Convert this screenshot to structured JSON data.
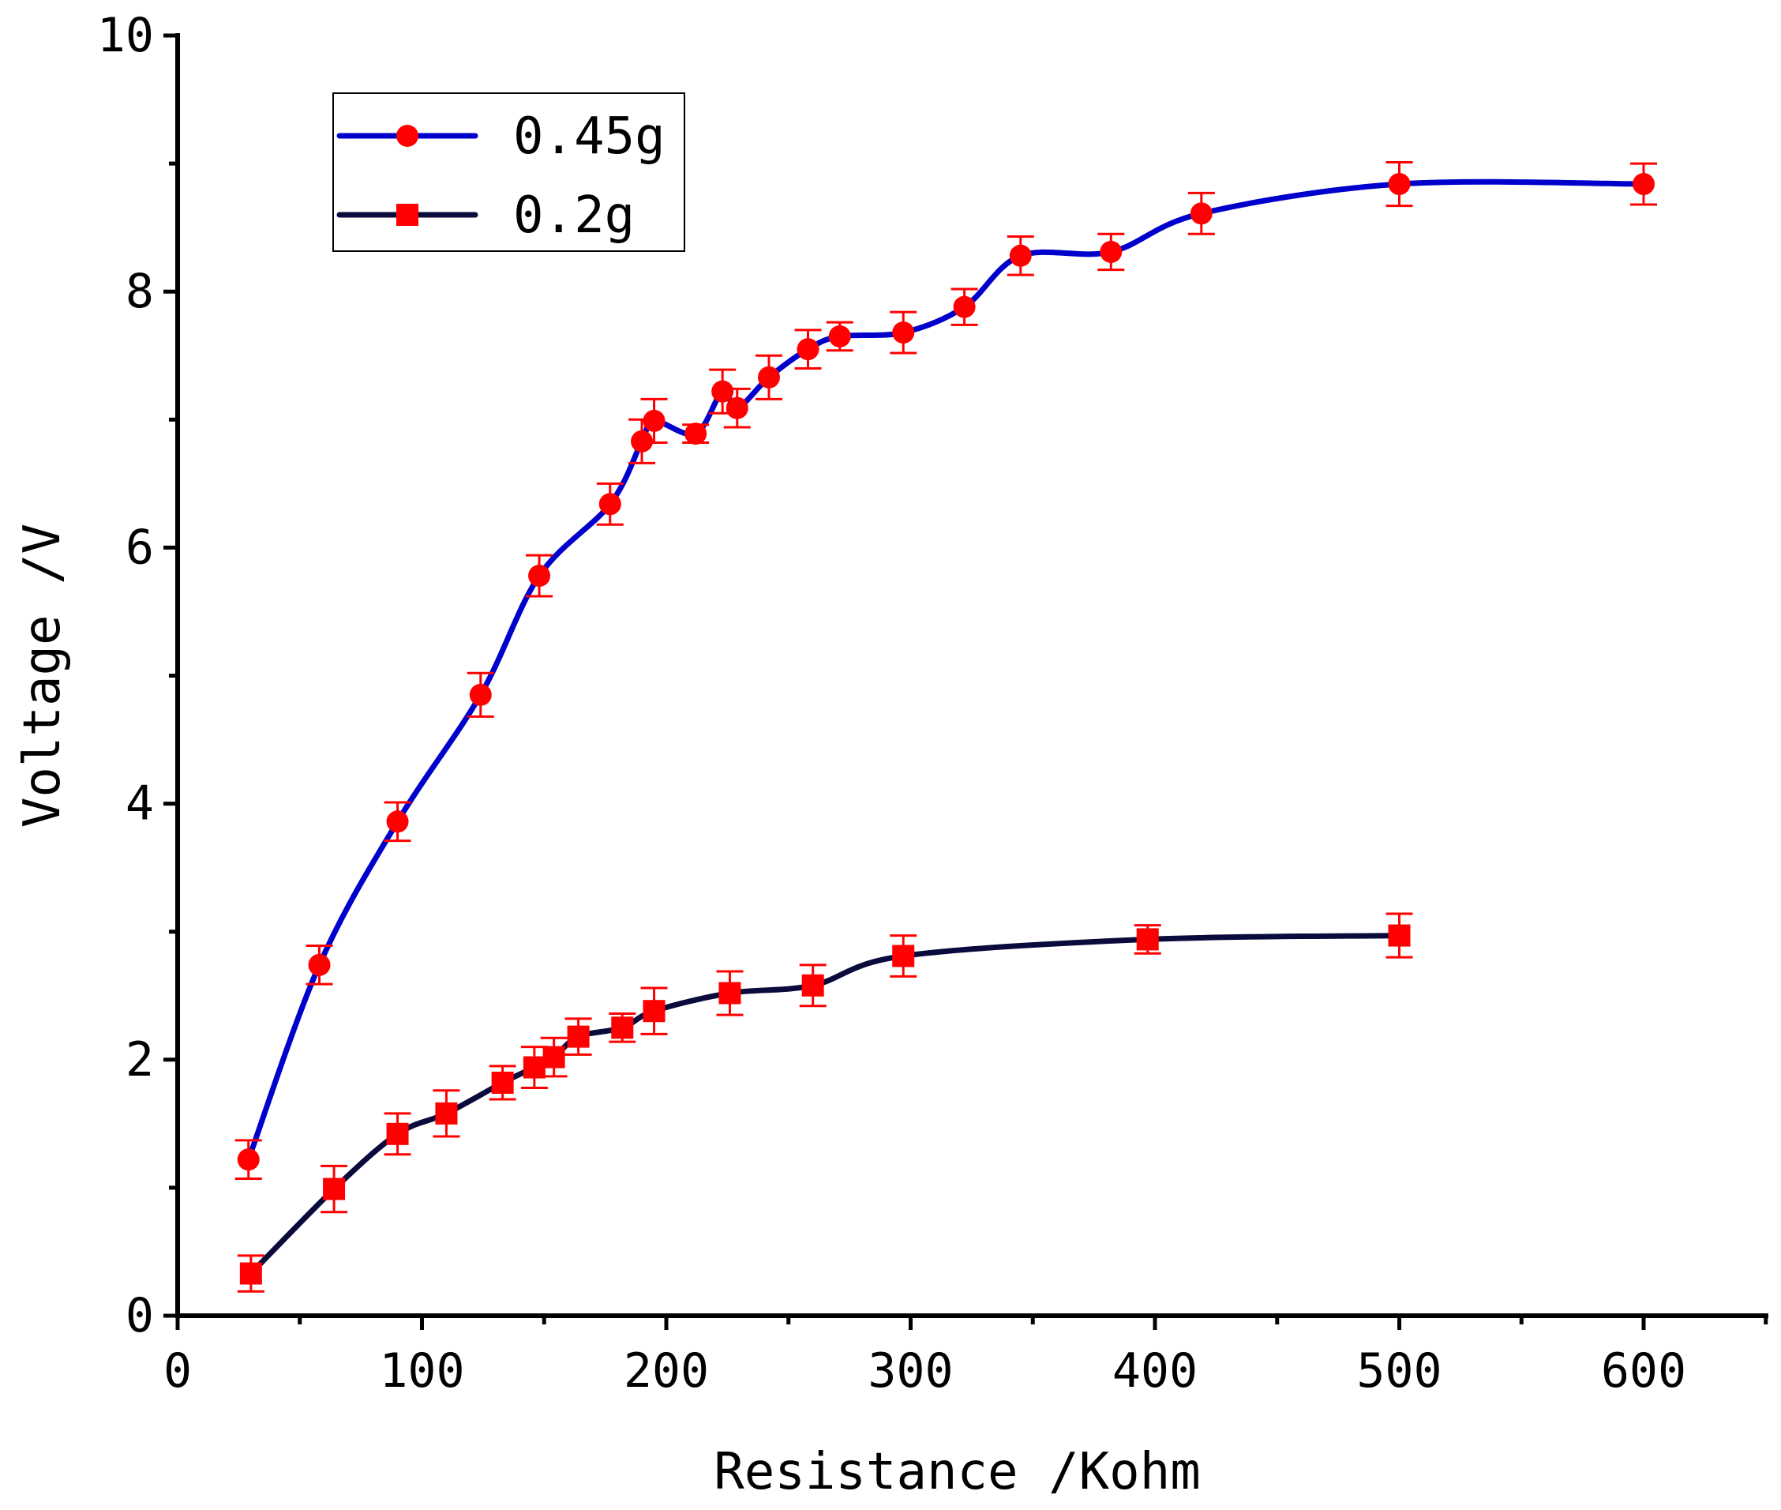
{
  "chart_data": {
    "type": "line",
    "title": "",
    "xlabel": "Resistance /Kohm",
    "ylabel": "Voltage /V",
    "xlim": [
      0,
      650
    ],
    "ylim": [
      0,
      10
    ],
    "x_ticks": [
      "0",
      "100",
      "200",
      "300",
      "400",
      "500",
      "600"
    ],
    "y_ticks": [
      "0",
      "2",
      "4",
      "6",
      "8",
      "10"
    ],
    "x_tick_values": [
      0,
      100,
      200,
      300,
      400,
      500,
      600
    ],
    "y_tick_values": [
      0,
      2,
      4,
      6,
      8,
      10
    ],
    "legend_position": "top-left",
    "grid": false,
    "marker_color": "#ff0000",
    "series": [
      {
        "name": "0.45g",
        "line_color": "#0000cc",
        "marker": "circle",
        "points": [
          {
            "x": 29,
            "y": 1.22,
            "err": 0.15
          },
          {
            "x": 58,
            "y": 2.74,
            "err": 0.15
          },
          {
            "x": 90,
            "y": 3.86,
            "err": 0.15
          },
          {
            "x": 124,
            "y": 4.85,
            "err": 0.17
          },
          {
            "x": 148,
            "y": 5.78,
            "err": 0.16
          },
          {
            "x": 177,
            "y": 6.34,
            "err": 0.16
          },
          {
            "x": 190,
            "y": 6.83,
            "err": 0.17
          },
          {
            "x": 195,
            "y": 6.99,
            "err": 0.17
          },
          {
            "x": 212,
            "y": 6.89,
            "err": 0.07
          },
          {
            "x": 223,
            "y": 7.22,
            "err": 0.17
          },
          {
            "x": 229,
            "y": 7.09,
            "err": 0.15
          },
          {
            "x": 242,
            "y": 7.33,
            "err": 0.17
          },
          {
            "x": 258,
            "y": 7.55,
            "err": 0.15
          },
          {
            "x": 271,
            "y": 7.65,
            "err": 0.11
          },
          {
            "x": 297,
            "y": 7.68,
            "err": 0.16
          },
          {
            "x": 322,
            "y": 7.88,
            "err": 0.14
          },
          {
            "x": 345,
            "y": 8.28,
            "err": 0.15
          },
          {
            "x": 382,
            "y": 8.31,
            "err": 0.14
          },
          {
            "x": 419,
            "y": 8.61,
            "err": 0.16
          },
          {
            "x": 500,
            "y": 8.84,
            "err": 0.17
          },
          {
            "x": 600,
            "y": 8.84,
            "err": 0.16
          }
        ]
      },
      {
        "name": "0.2g",
        "line_color": "#0a0a3c",
        "marker": "square",
        "points": [
          {
            "x": 30,
            "y": 0.33,
            "err": 0.14
          },
          {
            "x": 64,
            "y": 0.99,
            "err": 0.18
          },
          {
            "x": 90,
            "y": 1.42,
            "err": 0.16
          },
          {
            "x": 110,
            "y": 1.58,
            "err": 0.18
          },
          {
            "x": 133,
            "y": 1.82,
            "err": 0.13
          },
          {
            "x": 146,
            "y": 1.94,
            "err": 0.16
          },
          {
            "x": 154,
            "y": 2.02,
            "err": 0.15
          },
          {
            "x": 164,
            "y": 2.18,
            "err": 0.14
          },
          {
            "x": 182,
            "y": 2.25,
            "err": 0.11
          },
          {
            "x": 195,
            "y": 2.38,
            "err": 0.18
          },
          {
            "x": 226,
            "y": 2.52,
            "err": 0.17
          },
          {
            "x": 260,
            "y": 2.58,
            "err": 0.16
          },
          {
            "x": 297,
            "y": 2.81,
            "err": 0.16
          },
          {
            "x": 397,
            "y": 2.94,
            "err": 0.11
          },
          {
            "x": 500,
            "y": 2.97,
            "err": 0.17
          }
        ]
      }
    ]
  }
}
